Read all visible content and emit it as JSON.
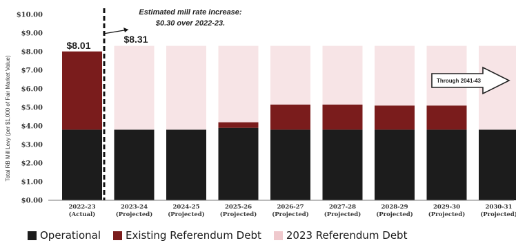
{
  "chart_data": {
    "type": "bar",
    "stacked": true,
    "title": "",
    "xlabel": "",
    "ylabel": "Total RB Mill Levy (per $1,000 of Fair Market Value)",
    "ylim": [
      0,
      10
    ],
    "yticks": [
      "$10.00",
      "$9.00",
      "$8.00",
      "$7.00",
      "$6.00",
      "$5.00",
      "$4.00",
      "$3.00",
      "$2.00",
      "$1.00",
      "$0.00"
    ],
    "categories": [
      [
        "2022-23",
        "(Actual)"
      ],
      [
        "2023-24",
        "(Projected)"
      ],
      [
        "2024-25",
        "(Projected)"
      ],
      [
        "2025-26",
        "(Projected)"
      ],
      [
        "2026-27",
        "(Projected)"
      ],
      [
        "2027-28",
        "(Projected)"
      ],
      [
        "2028-29",
        "(Projected)"
      ],
      [
        "2029-30",
        "(Projected)"
      ],
      [
        "2030-31",
        "(Projected)"
      ]
    ],
    "series": [
      {
        "name": "Operational",
        "color": "#1c1c1c",
        "values": [
          3.8,
          3.8,
          3.8,
          3.9,
          3.8,
          3.8,
          3.8,
          3.8,
          3.8
        ]
      },
      {
        "name": "Existing Referendum Debt",
        "color": "#7a1c1c",
        "values": [
          4.21,
          0,
          0,
          0.3,
          1.35,
          1.35,
          1.3,
          1.3,
          0
        ]
      },
      {
        "name": "2023 Referendum Debt",
        "color": "#f7e4e6",
        "values": [
          0,
          4.51,
          4.51,
          4.11,
          3.16,
          3.16,
          3.21,
          3.21,
          4.51
        ]
      }
    ],
    "data_labels": [
      "$8.01",
      "$8.31"
    ],
    "annotations": {
      "increase_line1": "Estimated mill rate increase:",
      "increase_line2": "$0.30 over 2022-23.",
      "arrow_text": "Through 2041-43"
    },
    "legend_position": "bottom",
    "grid": false
  }
}
